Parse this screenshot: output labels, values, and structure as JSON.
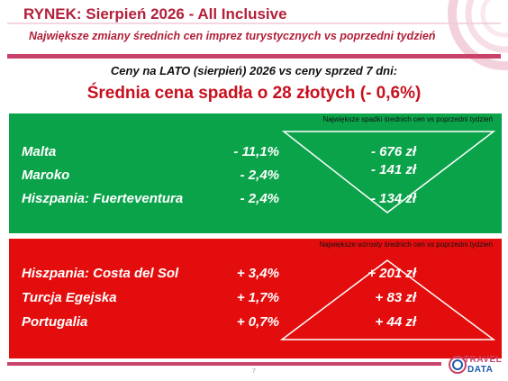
{
  "header": {
    "title": "RYNEK: Sierpień 2026 - All Inclusive",
    "subtitle": "Największe zmiany średnich cen imprez turystycznych vs poprzedni tydzień"
  },
  "intro": "Ceny na LATO (sierpień) 2026 vs ceny sprzed 7 dni:",
  "headline": "Średnia cena spadła o 28 złotych (- 0,6%)",
  "decreases": {
    "note": "Największe spadki średnich cen vs poprzedni tydzień",
    "rows": [
      {
        "name": "Malta",
        "pct": "-  11,1%",
        "abs": "- 676 zł"
      },
      {
        "name": "Maroko",
        "pct": "-  2,4%",
        "abs": "- 141 zł"
      },
      {
        "name": "Hiszpania: Fuerteventura",
        "pct": "-  2,4%",
        "abs": "- 134 zł"
      }
    ]
  },
  "increases": {
    "note": "Największe wzrosty średnich cen vs poprzedni tydzień",
    "rows": [
      {
        "name": "Hiszpania: Costa del Sol",
        "pct": "+ 3,4%",
        "abs": "+ 201 zł"
      },
      {
        "name": "Turcja Egejska",
        "pct": "+ 1,7%",
        "abs": "+ 83 zł"
      },
      {
        "name": "Portugalia",
        "pct": "+ 0,7%",
        "abs": "+ 44 zł"
      }
    ]
  },
  "footer": {
    "page_number": "7",
    "logo_top": "TRAVEL",
    "logo_bottom": "DATA"
  },
  "colors": {
    "accent": "#c8426a",
    "title": "#b2203a",
    "headline": "#c8101e",
    "panel_green": "#0aa34a",
    "panel_red": "#e40d0d"
  }
}
